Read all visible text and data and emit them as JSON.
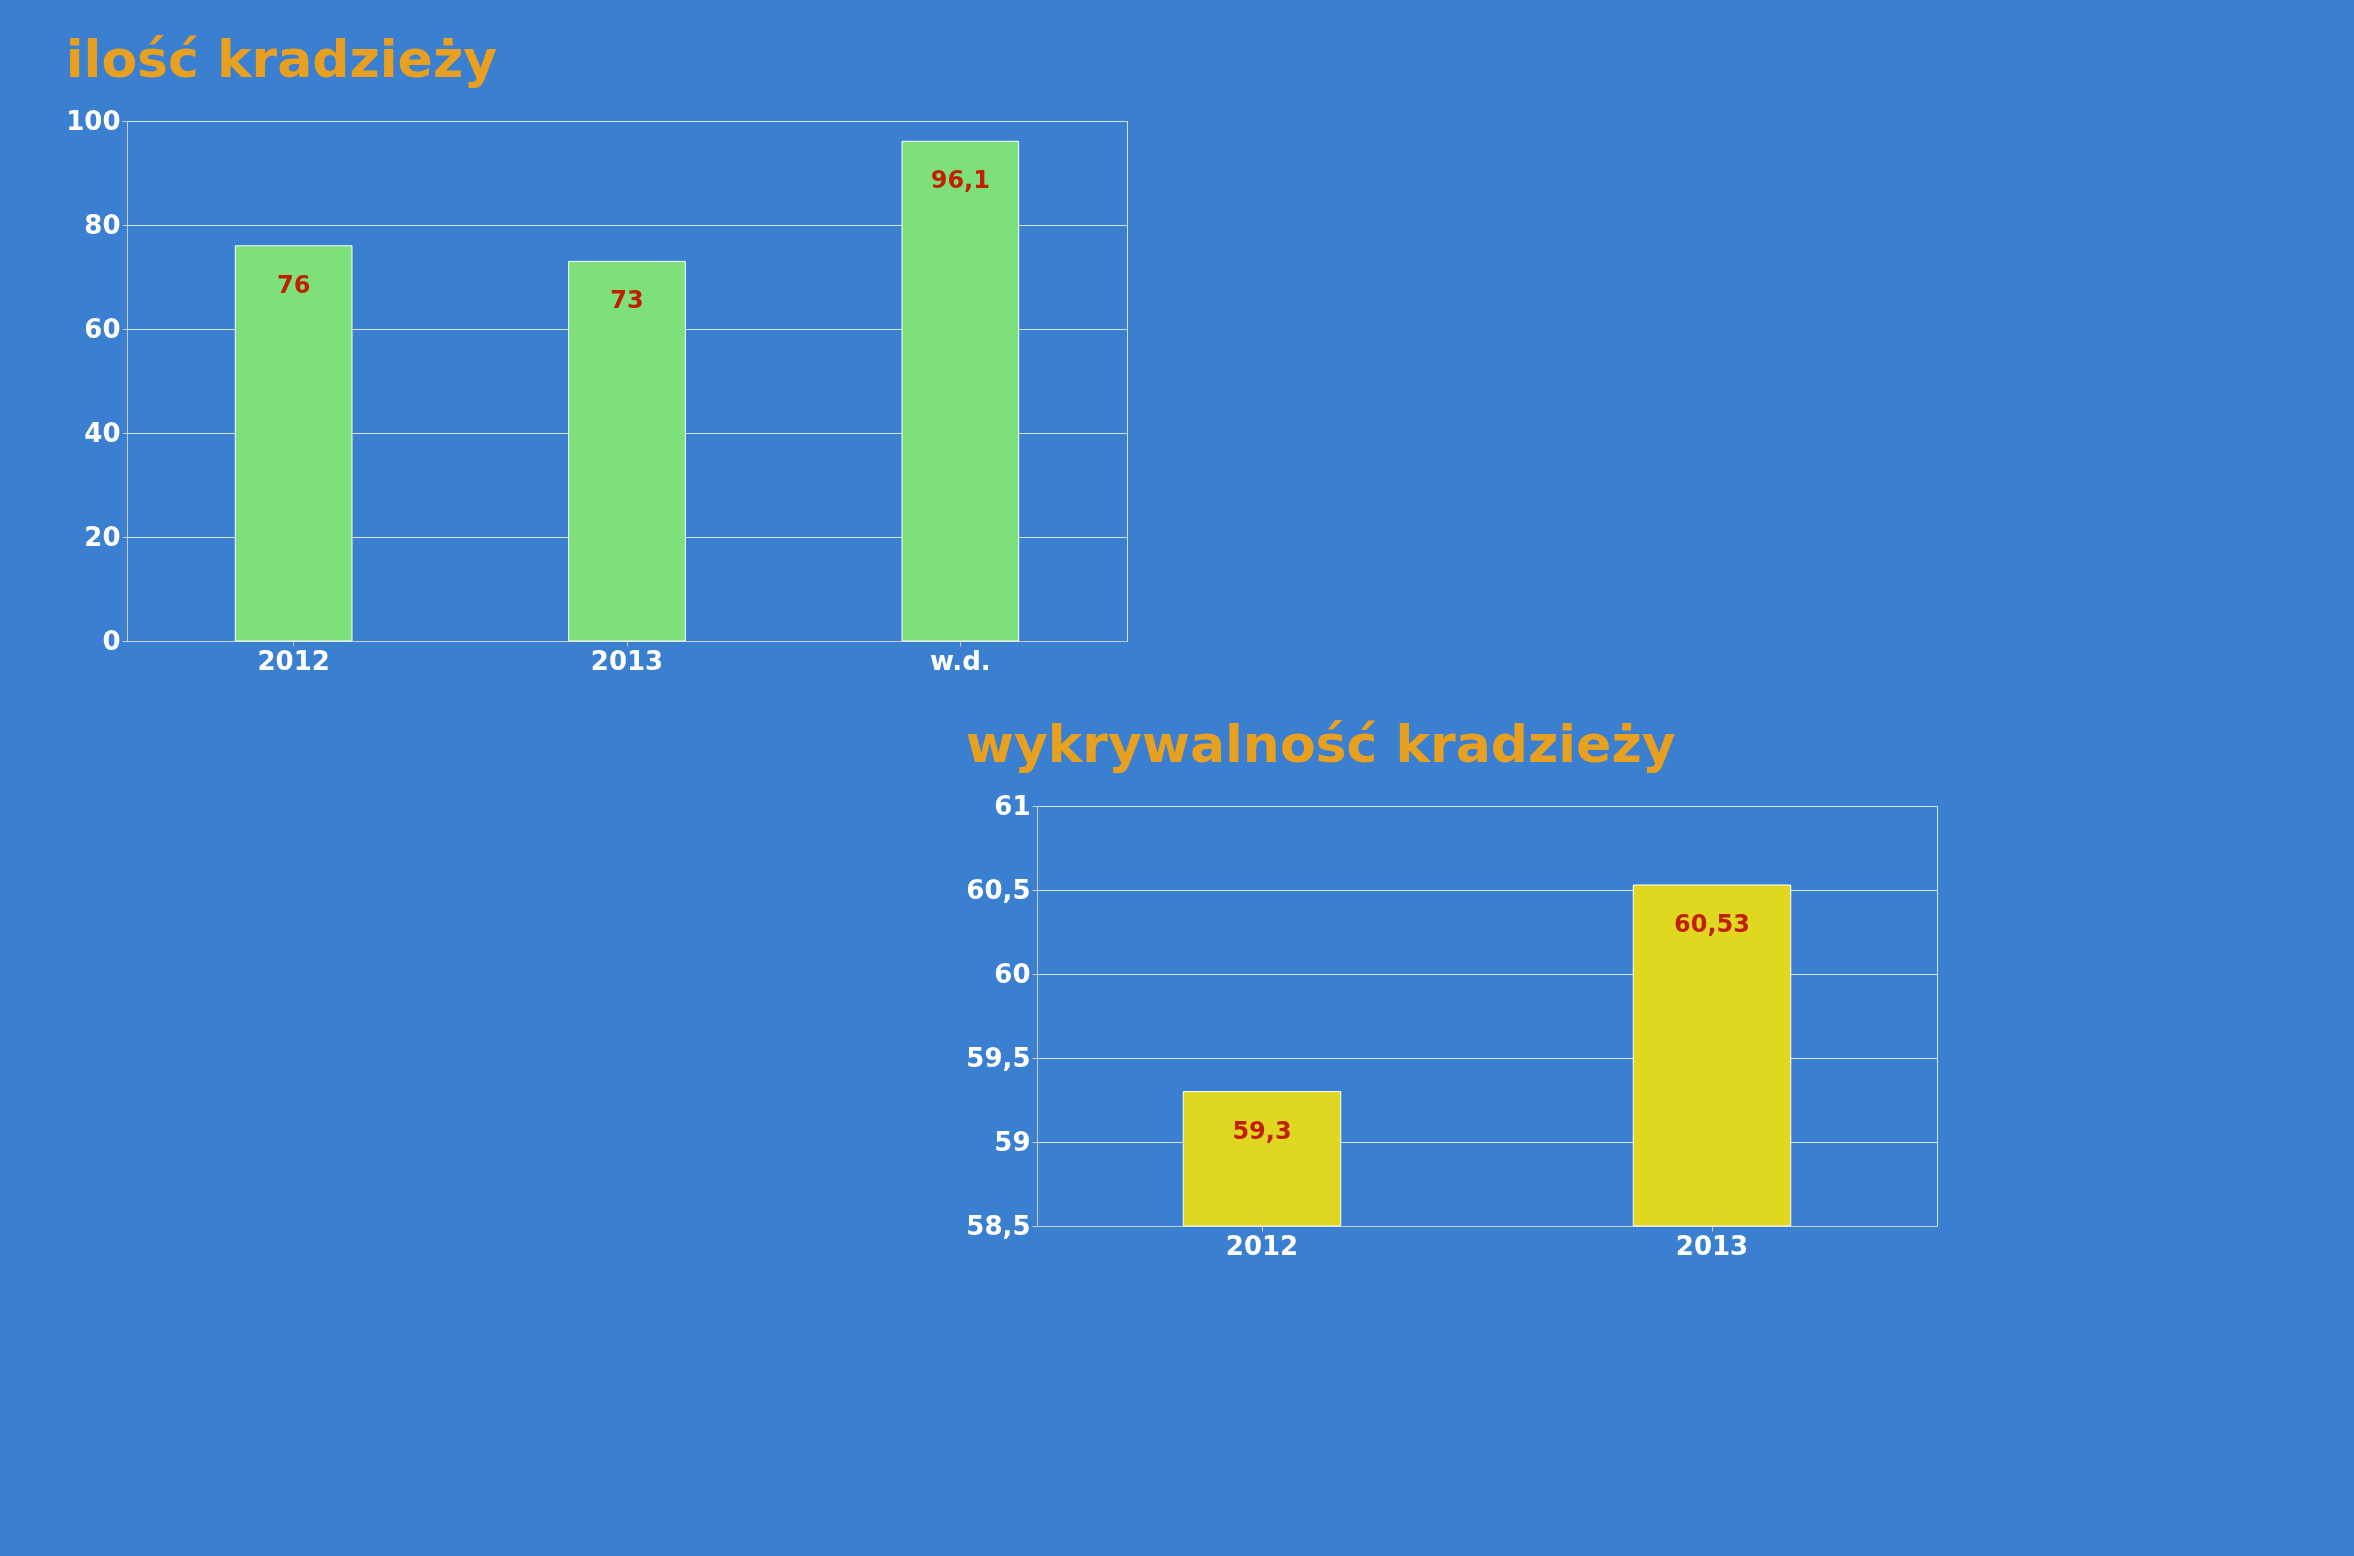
{
  "chart_data": [
    {
      "type": "bar",
      "title": "ilość kradzieży",
      "categories": [
        "2012",
        "2013",
        "w.d."
      ],
      "values": [
        76,
        73,
        96.1
      ],
      "value_labels": [
        "76",
        "73",
        "96,1"
      ],
      "color": "#7ee07a",
      "ylim": [
        0,
        100
      ],
      "yticks": [
        0,
        20,
        40,
        60,
        80,
        100
      ],
      "grid": "y"
    },
    {
      "type": "bar",
      "title": "wykrywalność kradzieży",
      "categories": [
        "2012",
        "2013"
      ],
      "values": [
        59.3,
        60.53
      ],
      "value_labels": [
        "59,3",
        "60,53"
      ],
      "color": "#e0d820",
      "ylim": [
        58.5,
        61
      ],
      "yticks": [
        {
          "value": 58.5,
          "label": "58,5"
        },
        59,
        {
          "value": 59.5,
          "label": "59,5"
        },
        60,
        {
          "value": 60.5,
          "label": "60,5"
        },
        61
      ],
      "grid": "y"
    }
  ]
}
